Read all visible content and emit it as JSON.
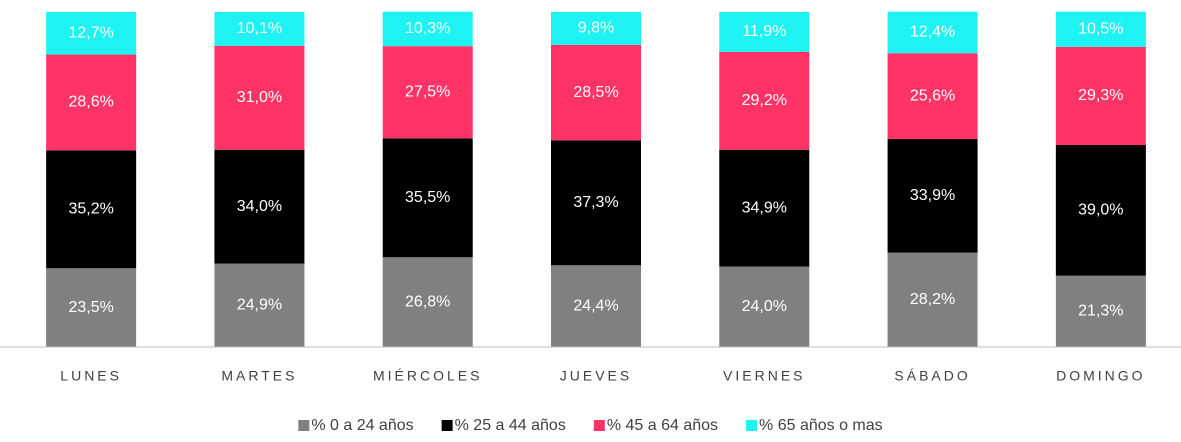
{
  "chart_data": {
    "type": "stacked_bar",
    "categories": [
      "LUNES",
      "MARTES",
      "MIÉRCOLES",
      "JUEVES",
      "VIERNES",
      "SÁBADO",
      "DOMINGO"
    ],
    "ylim": [
      0,
      100
    ],
    "series": [
      {
        "name": "% 0 a 24 años",
        "color": "#808080",
        "values": [
          23.5,
          24.9,
          26.8,
          24.4,
          24.0,
          28.2,
          21.3
        ],
        "value_labels": [
          "23,5%",
          "24,9%",
          "26,8%",
          "24,4%",
          "24,0%",
          "28,2%",
          "21,3%"
        ]
      },
      {
        "name": "% 25 a 44 años",
        "color": "#000000",
        "values": [
          35.2,
          34.0,
          35.5,
          37.3,
          34.9,
          33.9,
          39.0
        ],
        "value_labels": [
          "35,2%",
          "34,0%",
          "35,5%",
          "37,3%",
          "34,9%",
          "33,9%",
          "39,0%"
        ]
      },
      {
        "name": "% 45 a 64 años",
        "color": "#ff3366",
        "values": [
          28.6,
          31.0,
          27.5,
          28.5,
          29.2,
          25.6,
          29.3
        ],
        "value_labels": [
          "28,6%",
          "31,0%",
          "27,5%",
          "28,5%",
          "29,2%",
          "25,6%",
          "29,3%"
        ]
      },
      {
        "name": "% 65 años o mas",
        "color": "#1ef2f2",
        "values": [
          12.7,
          10.1,
          10.3,
          9.8,
          11.9,
          12.4,
          10.5
        ],
        "value_labels": [
          "12,7%",
          "10,1%",
          "10,3%",
          "9,8%",
          "11,9%",
          "12,4%",
          "10,5%"
        ]
      }
    ]
  }
}
